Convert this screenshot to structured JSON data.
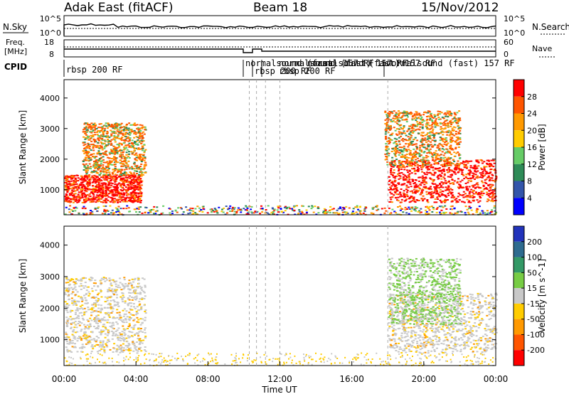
{
  "header": {
    "station": "Adak East (fitACF)",
    "beam": "Beam 18",
    "date": "15/Nov/2012"
  },
  "noise_panel": {
    "left_label": "N.Sky",
    "right_label": "N.Search",
    "left_ticks": [
      "10^5",
      "10^0"
    ],
    "right_ticks": [
      "10^5",
      "10^0"
    ]
  },
  "freq_panel": {
    "left_label_line1": "Freq.",
    "left_label_line2": "[MHz]",
    "right_label": "Nave",
    "left_ticks": [
      "18",
      "8"
    ],
    "right_ticks": [
      "60",
      "0"
    ]
  },
  "cpid": {
    "label": "CPID",
    "labels": [
      "rbsp 200 RF",
      "normalsound (fast) 157 RF",
      "rbsp 200 RF",
      "normalsound (fast) 157 RF",
      "rbsp 200 RF",
      "normalsound (fast) 157 RF",
      "normalsound (fast) 157 RF"
    ]
  },
  "chart_data": [
    {
      "type": "heatmap",
      "name": "power",
      "ylabel": "Slant Range [km]",
      "y_ticks": [
        "1000",
        "2000",
        "3000",
        "4000"
      ],
      "ylim": [
        180,
        4600
      ],
      "xlim": [
        0,
        24
      ],
      "colorbar": {
        "label": "Power [dB]",
        "ticks": [
          "4",
          "8",
          "12",
          "16",
          "20",
          "24",
          "28"
        ],
        "range": [
          0,
          32
        ],
        "colors": [
          "#0000ff",
          "#3355aa",
          "#2e8b57",
          "#66cc66",
          "#ffcc00",
          "#ff9900",
          "#ff5500",
          "#ff0000"
        ]
      },
      "regions": [
        {
          "x": [
            0.0,
            4.3
          ],
          "y": [
            600,
            1500
          ],
          "level": "high"
        },
        {
          "x": [
            1.0,
            4.5
          ],
          "y": [
            1500,
            3200
          ],
          "level": "mid"
        },
        {
          "x": [
            18.0,
            24.0
          ],
          "y": [
            600,
            2000
          ],
          "level": "high"
        },
        {
          "x": [
            17.8,
            22.0
          ],
          "y": [
            1800,
            3600
          ],
          "level": "mid"
        },
        {
          "x": [
            0.0,
            24.0
          ],
          "y": [
            200,
            500
          ],
          "level": "mixed"
        }
      ]
    },
    {
      "type": "heatmap",
      "name": "velocity",
      "ylabel": "Slant Range [km]",
      "y_ticks": [
        "1000",
        "2000",
        "3000",
        "4000"
      ],
      "ylim": [
        180,
        4600
      ],
      "xlim": [
        0,
        24
      ],
      "colorbar": {
        "label": "Velocity [m s^-1]",
        "ticks": [
          "200",
          "100",
          "50",
          "15",
          "-15",
          "-50",
          "-100",
          "-200"
        ],
        "range": [
          -250,
          250
        ],
        "colors": [
          "#2233bb",
          "#2e6b8f",
          "#339966",
          "#77cc44",
          "#c8c8c8",
          "#ffcc00",
          "#ff9900",
          "#ff5500",
          "#ff0000"
        ]
      },
      "regions": [
        {
          "x": [
            0.0,
            4.5
          ],
          "y": [
            600,
            3000
          ],
          "level": "near-zero"
        },
        {
          "x": [
            18.0,
            24.0
          ],
          "y": [
            600,
            2500
          ],
          "level": "near-zero"
        },
        {
          "x": [
            18.0,
            22.0
          ],
          "y": [
            1500,
            3600
          ],
          "level": "positive"
        }
      ]
    }
  ],
  "x_axis": {
    "ticks": [
      "00:00",
      "04:00",
      "08:00",
      "12:00",
      "16:00",
      "20:00",
      "00:00"
    ],
    "label": "Time UT"
  }
}
